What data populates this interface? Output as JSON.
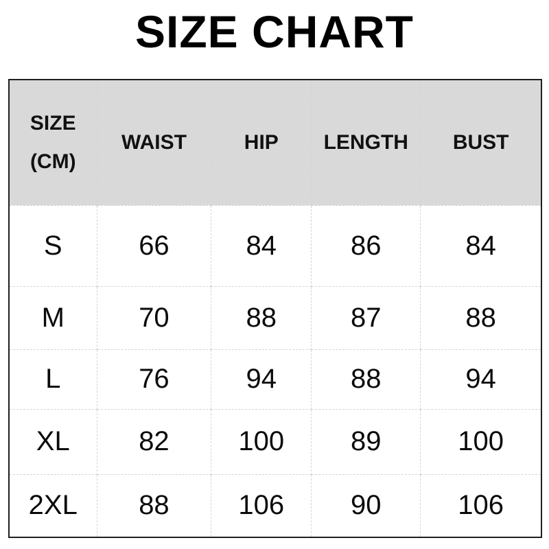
{
  "title": "SIZE CHART",
  "colors": {
    "header_bg": "#d9d9d9",
    "outer_border": "#1f1f1f",
    "inner_border": "#d4d4d4",
    "text": "#000000"
  },
  "header": {
    "col1_line1": "SIZE",
    "col1_line2": "(CM)",
    "col2": "WAIST",
    "col3": "HIP",
    "col4": "LENGTH",
    "col5": "BUST"
  },
  "chart_data": {
    "type": "table",
    "title": "SIZE CHART",
    "columns": [
      "SIZE (CM)",
      "WAIST",
      "HIP",
      "LENGTH",
      "BUST"
    ],
    "rows": [
      {
        "size": "S",
        "waist": "66",
        "hip": "84",
        "length": "86",
        "bust": "84"
      },
      {
        "size": "M",
        "waist": "70",
        "hip": "88",
        "length": "87",
        "bust": "88"
      },
      {
        "size": "L",
        "waist": "76",
        "hip": "94",
        "length": "88",
        "bust": "94"
      },
      {
        "size": "XL",
        "waist": "82",
        "hip": "100",
        "length": "89",
        "bust": "100"
      },
      {
        "size": "2XL",
        "waist": "88",
        "hip": "106",
        "length": "90",
        "bust": "106"
      }
    ]
  }
}
